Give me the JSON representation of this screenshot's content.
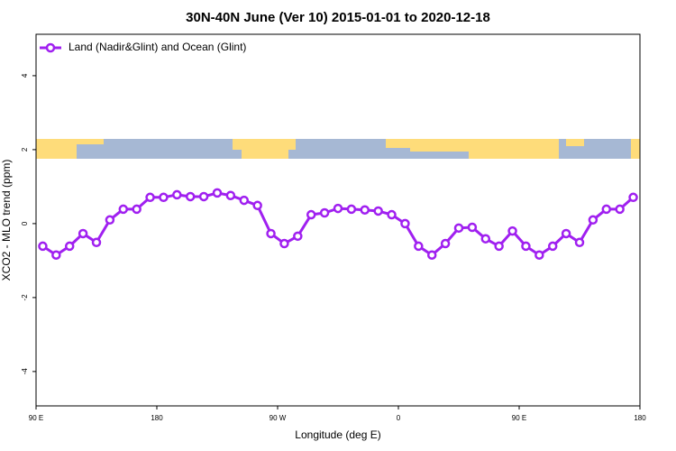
{
  "chart_data": {
    "type": "line",
    "title": "30N-40N June (Ver 10)   2015-01-01 to 2020-12-18",
    "x_label": "Longitude (deg E)",
    "y_label": "XCO2 - MLO trend (ppm)",
    "x": [
      95,
      105,
      115,
      125,
      135,
      145,
      155,
      165,
      175,
      185,
      195,
      205,
      215,
      225,
      235,
      245,
      255,
      265,
      275,
      285,
      295,
      305,
      315,
      325,
      335,
      345,
      355,
      365,
      375,
      385,
      395,
      405,
      415,
      425,
      435,
      445,
      455,
      465,
      475,
      485,
      495,
      505,
      515,
      525,
      535
    ],
    "series": [
      {
        "name": "Land (Nadir&Glint) and Ocean (Glint)",
        "color": "#a020f0",
        "values": [
          -0.61,
          -0.85,
          -0.61,
          -0.27,
          -0.51,
          0.1,
          0.39,
          0.39,
          0.71,
          0.71,
          0.78,
          0.73,
          0.73,
          0.83,
          0.76,
          0.63,
          0.49,
          -0.27,
          -0.54,
          -0.34,
          0.24,
          0.29,
          0.41,
          0.39,
          0.37,
          0.34,
          0.24,
          0.0,
          -0.61,
          -0.85,
          -0.54,
          -0.12,
          -0.1,
          -0.41,
          -0.61,
          -0.2,
          -0.61,
          -0.85,
          -0.61,
          -0.27,
          -0.51,
          0.1,
          0.39,
          0.39,
          0.71
        ]
      }
    ],
    "xlim": [
      90,
      540
    ],
    "xticks": [
      {
        "value": 90,
        "label": "90 E"
      },
      180,
      {
        "value": 270,
        "label": "90 W"
      },
      {
        "value": 360,
        "label": "0"
      },
      {
        "value": 450,
        "label": "90 E"
      },
      {
        "value": 540,
        "label": "180"
      }
    ],
    "ylim": [
      -4.93,
      5.12
    ],
    "yticks": [
      -4,
      -2,
      0,
      2,
      4
    ],
    "legend": "top-left"
  }
}
